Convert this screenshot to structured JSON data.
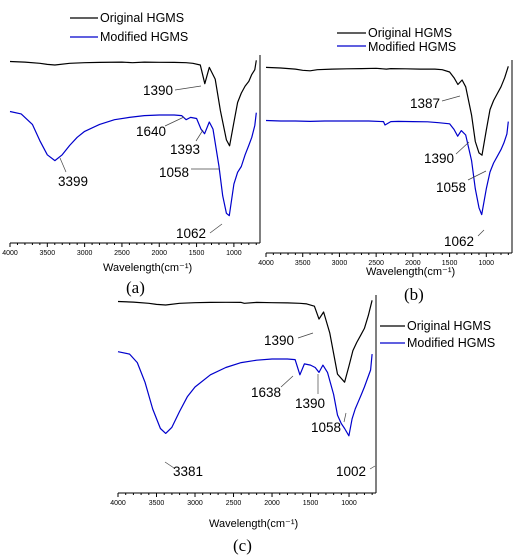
{
  "legend": {
    "original_label": "Original HGMS",
    "modified_label": "Modified HGMS",
    "original_color": "#000000",
    "modified_color": "#0000cc"
  },
  "chart_data": [
    {
      "panel": "(a)",
      "type": "line",
      "xlabel": "Wavelength(cm⁻¹)",
      "xlim": [
        4000,
        650
      ],
      "x_reversed": true,
      "xticks": [
        4000,
        3500,
        3000,
        2500,
        2000,
        1500,
        1000
      ],
      "annotations": [
        "1390",
        "1640",
        "1393",
        "1058",
        "3399",
        "1062"
      ],
      "series": [
        {
          "name": "Original HGMS",
          "x": [
            4000,
            3800,
            3600,
            3500,
            3399,
            3200,
            3000,
            2800,
            2500,
            2360,
            2200,
            2000,
            1800,
            1640,
            1550,
            1450,
            1390,
            1330,
            1250,
            1180,
            1100,
            1058,
            1000,
            950,
            900,
            850,
            800,
            760,
            720,
            700
          ],
          "y": [
            0.97,
            0.965,
            0.955,
            0.945,
            0.94,
            0.955,
            0.96,
            0.962,
            0.965,
            0.96,
            0.965,
            0.963,
            0.962,
            0.96,
            0.955,
            0.94,
            0.78,
            0.92,
            0.82,
            0.55,
            0.3,
            0.25,
            0.45,
            0.62,
            0.7,
            0.76,
            0.8,
            0.86,
            0.9,
            0.98
          ]
        },
        {
          "name": "Modified HGMS",
          "x": [
            4000,
            3850,
            3700,
            3600,
            3500,
            3399,
            3300,
            3200,
            3100,
            3000,
            2800,
            2600,
            2400,
            2200,
            2000,
            1800,
            1700,
            1640,
            1580,
            1500,
            1440,
            1393,
            1330,
            1280,
            1200,
            1150,
            1100,
            1062,
            1000,
            950,
            900,
            850,
            800,
            760,
            720,
            700
          ],
          "y": [
            0.97,
            0.95,
            0.86,
            0.72,
            0.6,
            0.55,
            0.6,
            0.68,
            0.75,
            0.8,
            0.86,
            0.9,
            0.92,
            0.935,
            0.94,
            0.94,
            0.935,
            0.9,
            0.92,
            0.91,
            0.82,
            0.78,
            0.88,
            0.82,
            0.5,
            0.25,
            0.1,
            0.08,
            0.35,
            0.45,
            0.5,
            0.6,
            0.68,
            0.75,
            0.85,
            0.96
          ]
        }
      ]
    },
    {
      "panel": "(b)",
      "type": "line",
      "xlabel": "Wavelength(cm⁻¹)",
      "xlim": [
        4000,
        650
      ],
      "x_reversed": true,
      "xticks": [
        4000,
        3500,
        3000,
        2500,
        2000,
        1500,
        1000
      ],
      "annotations": [
        "1387",
        "1390",
        "1058",
        "1062"
      ],
      "series": [
        {
          "name": "Original HGMS",
          "x": [
            4000,
            3800,
            3600,
            3500,
            3400,
            3300,
            3100,
            2900,
            2700,
            2500,
            2360,
            2300,
            2100,
            1900,
            1700,
            1600,
            1500,
            1440,
            1387,
            1330,
            1280,
            1200,
            1150,
            1100,
            1058,
            1000,
            950,
            900,
            850,
            800,
            750,
            700
          ],
          "y": [
            0.97,
            0.965,
            0.955,
            0.945,
            0.94,
            0.95,
            0.955,
            0.958,
            0.96,
            0.962,
            0.955,
            0.96,
            0.958,
            0.955,
            0.955,
            0.95,
            0.93,
            0.88,
            0.82,
            0.86,
            0.8,
            0.55,
            0.32,
            0.22,
            0.2,
            0.42,
            0.6,
            0.68,
            0.74,
            0.8,
            0.88,
            0.98
          ]
        },
        {
          "name": "Modified HGMS",
          "x": [
            4000,
            3800,
            3600,
            3400,
            3200,
            3000,
            2800,
            2600,
            2400,
            2380,
            2300,
            2200,
            2000,
            1800,
            1650,
            1500,
            1440,
            1390,
            1340,
            1280,
            1200,
            1150,
            1100,
            1062,
            1000,
            950,
            900,
            850,
            800,
            760,
            720,
            700
          ],
          "y": [
            0.96,
            0.955,
            0.955,
            0.952,
            0.955,
            0.955,
            0.955,
            0.955,
            0.95,
            0.92,
            0.95,
            0.952,
            0.95,
            0.948,
            0.94,
            0.93,
            0.88,
            0.82,
            0.87,
            0.83,
            0.6,
            0.35,
            0.18,
            0.12,
            0.35,
            0.5,
            0.58,
            0.64,
            0.7,
            0.76,
            0.84,
            0.95
          ]
        }
      ]
    },
    {
      "panel": "(c)",
      "type": "line",
      "xlabel": "Wavelength(cm⁻¹)",
      "xlim": [
        4000,
        650
      ],
      "x_reversed": true,
      "xticks": [
        4000,
        3500,
        3000,
        2500,
        2000,
        1500,
        1000
      ],
      "annotations": [
        "1390",
        "1638",
        "1390",
        "1058",
        "3381",
        "1002"
      ],
      "series": [
        {
          "name": "Original HGMS",
          "x": [
            4000,
            3800,
            3600,
            3500,
            3381,
            3200,
            3000,
            2800,
            2600,
            2400,
            2360,
            2200,
            2000,
            1800,
            1640,
            1550,
            1450,
            1390,
            1330,
            1250,
            1150,
            1058,
            1000,
            950,
            900,
            850,
            800,
            750,
            700
          ],
          "y": [
            0.97,
            0.965,
            0.955,
            0.945,
            0.94,
            0.955,
            0.96,
            0.962,
            0.963,
            0.962,
            0.955,
            0.962,
            0.96,
            0.958,
            0.955,
            0.95,
            0.93,
            0.82,
            0.88,
            0.7,
            0.35,
            0.28,
            0.42,
            0.55,
            0.62,
            0.68,
            0.74,
            0.85,
            0.98
          ]
        },
        {
          "name": "Modified HGMS",
          "x": [
            4000,
            3850,
            3750,
            3650,
            3550,
            3450,
            3381,
            3300,
            3200,
            3100,
            3000,
            2800,
            2600,
            2400,
            2200,
            2000,
            1800,
            1700,
            1638,
            1580,
            1500,
            1440,
            1390,
            1340,
            1280,
            1200,
            1150,
            1100,
            1058,
            1002,
            960,
            920,
            880,
            840,
            800,
            760,
            720,
            700
          ],
          "y": [
            0.97,
            0.95,
            0.88,
            0.72,
            0.5,
            0.34,
            0.3,
            0.35,
            0.48,
            0.6,
            0.68,
            0.78,
            0.84,
            0.88,
            0.9,
            0.91,
            0.91,
            0.905,
            0.78,
            0.87,
            0.86,
            0.84,
            0.8,
            0.86,
            0.8,
            0.62,
            0.45,
            0.38,
            0.34,
            0.28,
            0.42,
            0.5,
            0.56,
            0.62,
            0.68,
            0.75,
            0.82,
            0.95
          ]
        }
      ]
    }
  ]
}
